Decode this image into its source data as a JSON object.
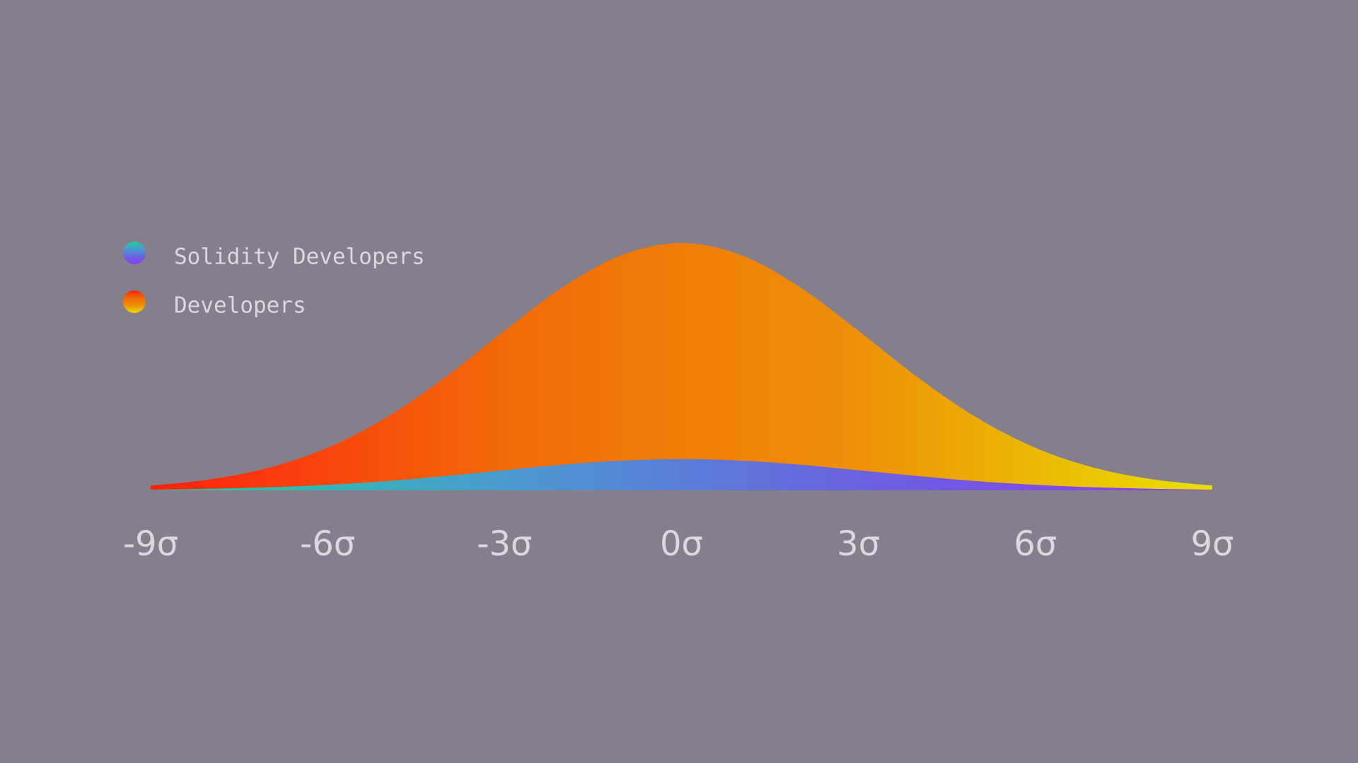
{
  "chart_data": {
    "type": "area",
    "x": [
      -9,
      -8,
      -7,
      -6,
      -5,
      -4,
      -3,
      -2,
      -1,
      0,
      1,
      2,
      3,
      4,
      5,
      6,
      7,
      8,
      9
    ],
    "xlim": [
      -9,
      9
    ],
    "xticks": [
      {
        "value": -9,
        "label": "-9σ"
      },
      {
        "value": -6,
        "label": "-6σ"
      },
      {
        "value": -3,
        "label": "-3σ"
      },
      {
        "value": 0,
        "label": "0σ"
      },
      {
        "value": 3,
        "label": "3σ"
      },
      {
        "value": 6,
        "label": "6σ"
      },
      {
        "value": 9,
        "label": "9σ"
      }
    ],
    "ylim": [
      0,
      100
    ],
    "legend": "top-left",
    "series": [
      {
        "name": "Solidity Developers",
        "colors": [
          "#1fcf9a",
          "#4a9ad0",
          "#6a62e0",
          "#8b3cf0"
        ],
        "values": [
          0.2,
          0.6,
          1.2,
          2.2,
          3.7,
          5.8,
          8.1,
          10.4,
          12.0,
          12.6,
          12.0,
          10.4,
          8.1,
          5.8,
          3.7,
          2.2,
          1.2,
          0.6,
          0.2
        ]
      },
      {
        "name": "Developers",
        "colors": [
          "#ff2010",
          "#f26a08",
          "#ee9008",
          "#e9e000"
        ],
        "values": [
          1.9,
          4.4,
          9.1,
          17.2,
          29.5,
          45.8,
          64.5,
          82.3,
          95.2,
          100,
          95.2,
          82.3,
          64.5,
          45.8,
          29.5,
          17.2,
          9.1,
          4.4,
          1.9
        ]
      }
    ]
  }
}
